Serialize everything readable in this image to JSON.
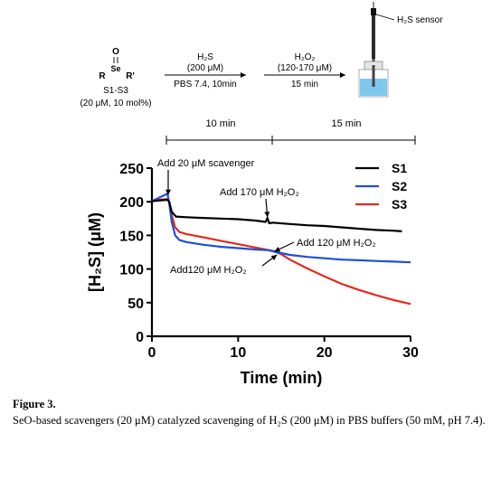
{
  "scheme": {
    "reactant": {
      "o": "O",
      "se": "Se",
      "r": "R",
      "r2": "R'",
      "name": "S1-S3",
      "conc": "(20 μM, 10 mol%)"
    },
    "step1": {
      "above": "H₂S",
      "above2": "(200 μM)",
      "below": "PBS 7.4, 10min"
    },
    "step2": {
      "above": "H₂O₂",
      "above2": "(120-170 μM)",
      "below": "15 min"
    },
    "sensor_label": "H₂S sensor",
    "timeline": {
      "first": "10 min",
      "second": "15 min"
    }
  },
  "chart_data": {
    "type": "line",
    "xlabel": "Time (min)",
    "ylabel": "[H₂S] (μM)",
    "xlim": [
      0,
      30
    ],
    "ylim": [
      0,
      250
    ],
    "xticks": [
      0,
      10,
      20,
      30
    ],
    "yticks": [
      0,
      50,
      100,
      150,
      200,
      250
    ],
    "grid": false,
    "legend_position": "top-right",
    "series": [
      {
        "name": "S1",
        "color": "#000000",
        "x": [
          0,
          1.8,
          2.0,
          2.3,
          2.8,
          4,
          6,
          8,
          10,
          12,
          13.2,
          13.4,
          13.6,
          14,
          16,
          18,
          20,
          22,
          24,
          26,
          28,
          29
        ],
        "y": [
          201,
          203,
          200,
          185,
          178,
          177,
          176,
          175,
          174,
          172,
          170,
          176,
          168,
          169,
          167,
          165,
          164,
          162,
          160,
          158,
          157,
          156
        ]
      },
      {
        "name": "S2",
        "color": "#1f4fd6",
        "x": [
          0,
          1.8,
          2.0,
          2.3,
          2.7,
          3.2,
          4,
          6,
          8,
          10,
          12,
          13.5,
          14.5,
          16,
          18,
          20,
          22,
          24,
          26,
          28,
          30
        ],
        "y": [
          201,
          212,
          198,
          170,
          150,
          143,
          140,
          136,
          133,
          131,
          129,
          128,
          125,
          121,
          118,
          116,
          114,
          113,
          112,
          111,
          110
        ]
      },
      {
        "name": "S3",
        "color": "#e8281e",
        "x": [
          0,
          1.8,
          2.0,
          2.3,
          2.7,
          3.2,
          4,
          6,
          8,
          10,
          12,
          14,
          15,
          16,
          18,
          20,
          22,
          24,
          26,
          28,
          30
        ],
        "y": [
          202,
          204,
          200,
          180,
          162,
          155,
          152,
          147,
          142,
          137,
          132,
          127,
          122,
          114,
          101,
          89,
          78,
          69,
          61,
          54,
          48
        ]
      }
    ],
    "annotations": [
      {
        "text": "Add 20 μM scavenger"
      },
      {
        "text": "Add 170 μM H₂O₂"
      },
      {
        "text": "Add 120 μM H₂O₂"
      },
      {
        "text": "Add120 μM H₂O₂"
      }
    ]
  },
  "caption": {
    "title": "Figure 3.",
    "text": "SeO-based scavengers (20 μM) catalyzed scavenging of H₂S (200 μM) in PBS buffers (50 mM, pH 7.4)."
  }
}
